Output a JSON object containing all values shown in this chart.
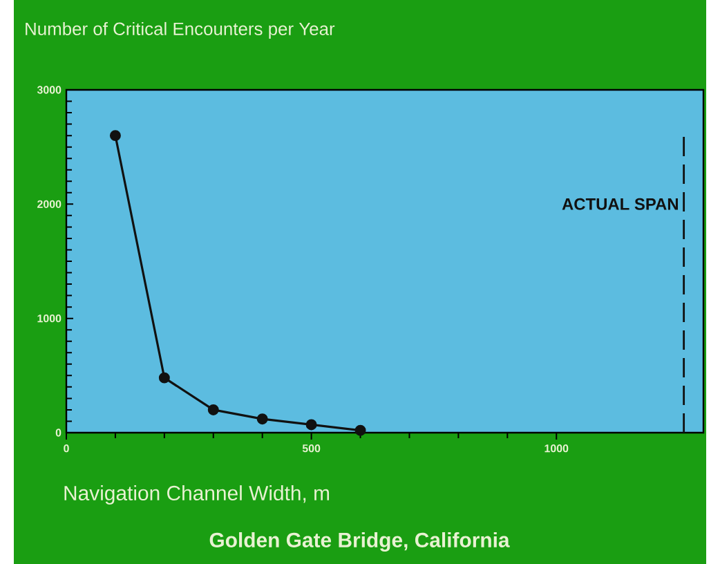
{
  "chart_data": {
    "type": "line",
    "title": "Number of Critical Encounters per Year",
    "xlabel": "Navigation Channel Width, m",
    "annotations": [
      "Golden Gate Bridge, California"
    ],
    "x": [
      100,
      200,
      300,
      400,
      500,
      600
    ],
    "series": [
      {
        "color": "#111111",
        "values": [
          2600,
          480,
          200,
          120,
          70,
          20
        ]
      }
    ],
    "xlim": [
      0,
      1300
    ],
    "xticks": [
      0,
      500,
      1000
    ],
    "ylim": [
      0,
      3000
    ],
    "yticks": [
      0,
      1000,
      2000,
      3000
    ],
    "ref_lines": [
      {
        "axis": "x",
        "value": 1260,
        "label": "ACTUAL SPAN",
        "color": "#111111",
        "line_style": "dashed"
      }
    ],
    "marker": "circle",
    "line_style": "solid",
    "grid": false,
    "legend": false
  }
}
